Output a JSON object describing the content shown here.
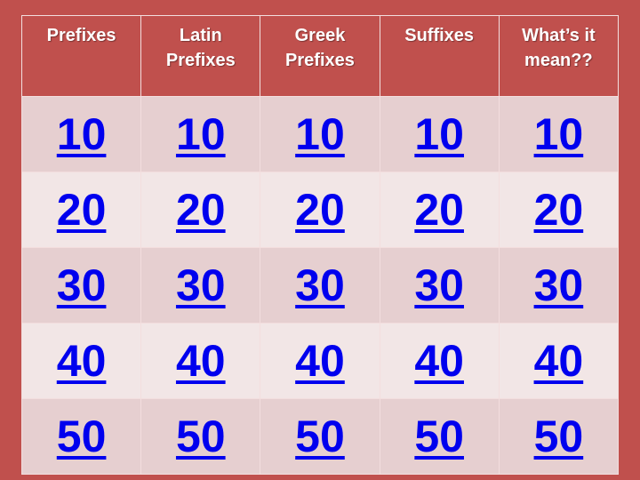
{
  "colors": {
    "background": "#c0504d",
    "link": "#0000ee",
    "row_odd": "#e6cfd0",
    "row_even": "#f2e6e6",
    "header_text": "#ffffff"
  },
  "categories": [
    {
      "line1": "Prefixes",
      "line2": ""
    },
    {
      "line1": "Latin",
      "line2": "Prefixes"
    },
    {
      "line1": "Greek",
      "line2": "Prefixes"
    },
    {
      "line1": "Suffixes",
      "line2": ""
    },
    {
      "line1": "What’s it",
      "line2": "mean??"
    }
  ],
  "point_values": [
    "10",
    "20",
    "30",
    "40",
    "50"
  ]
}
